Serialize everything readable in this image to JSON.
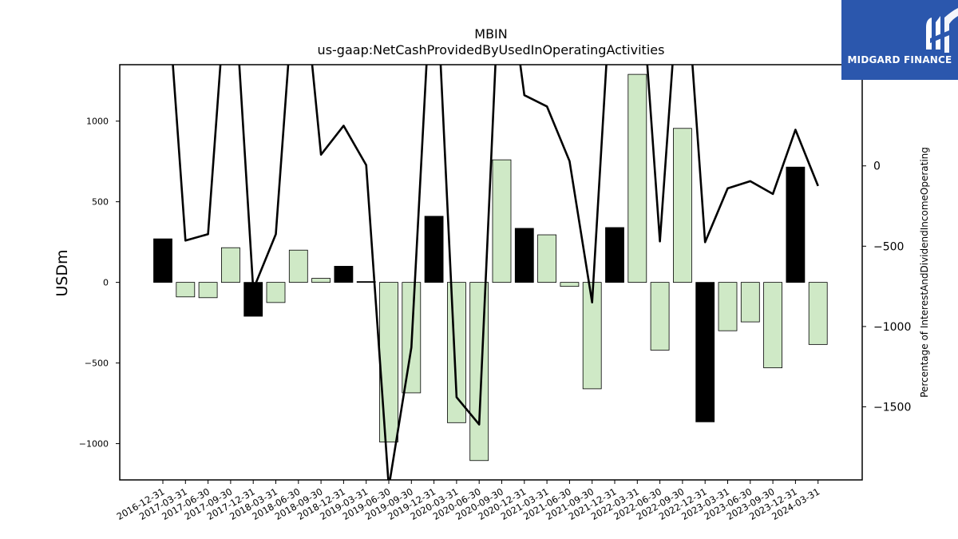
{
  "chart_data": {
    "type": "bar",
    "title": "MBIN",
    "subtitle": "us-gaap:NetCashProvidedByUsedInOperatingActivities",
    "ylabel": "USDm",
    "y2label": "Percentage of InterestAndDividendIncomeOperating",
    "ylim": [
      -1225,
      1350
    ],
    "y2lim": [
      -1955,
      630
    ],
    "yticks": [
      -1000,
      -500,
      0,
      500,
      1000
    ],
    "y2ticks": [
      -1500,
      -1000,
      -500,
      0
    ],
    "categories": [
      "2016-12-31",
      "2017-03-31",
      "2017-06-30",
      "2017-09-30",
      "2017-12-31",
      "2018-03-31",
      "2018-06-30",
      "2018-09-30",
      "2018-12-31",
      "2019-03-31",
      "2019-06-30",
      "2019-09-30",
      "2019-12-31",
      "2020-03-31",
      "2020-06-30",
      "2020-09-30",
      "2020-12-31",
      "2021-03-31",
      "2021-06-30",
      "2021-09-30",
      "2021-12-31",
      "2022-03-31",
      "2022-06-30",
      "2022-09-30",
      "2022-12-31",
      "2023-03-31",
      "2023-06-30",
      "2023-09-30",
      "2023-12-31",
      "2024-03-31"
    ],
    "series": [
      {
        "values": [
          270,
          -90,
          -95,
          215,
          -210,
          -125,
          200,
          25,
          100,
          5,
          -990,
          -685,
          410,
          -870,
          -1105,
          760,
          335,
          295,
          -25,
          -660,
          340,
          1290,
          -420,
          955,
          -865,
          -300,
          -245,
          -530,
          715,
          -385
        ],
        "highlight": [
          true,
          false,
          false,
          false,
          true,
          false,
          false,
          false,
          true,
          true,
          false,
          false,
          true,
          false,
          false,
          false,
          true,
          false,
          false,
          false,
          true,
          false,
          false,
          false,
          true,
          false,
          false,
          false,
          true,
          false
        ]
      },
      {
        "axis": "right",
        "type": "line",
        "values": [
          1500,
          -465,
          -425,
          1500,
          -770,
          -425,
          1500,
          70,
          250,
          5,
          -2000,
          -1130,
          1500,
          -1440,
          -1610,
          1500,
          440,
          370,
          30,
          -850,
          1500,
          1500,
          -470,
          1500,
          -475,
          -140,
          -95,
          -175,
          225,
          -125
        ]
      }
    ],
    "colors": {
      "highlight_bar": "#000000",
      "bar": "#cfe9c6",
      "bar_edge": "#000000",
      "line": "#000000"
    },
    "grid": false,
    "legend": "none"
  },
  "logo": {
    "text": "MIDGARD FINANCE",
    "background": "#2b57ad"
  }
}
